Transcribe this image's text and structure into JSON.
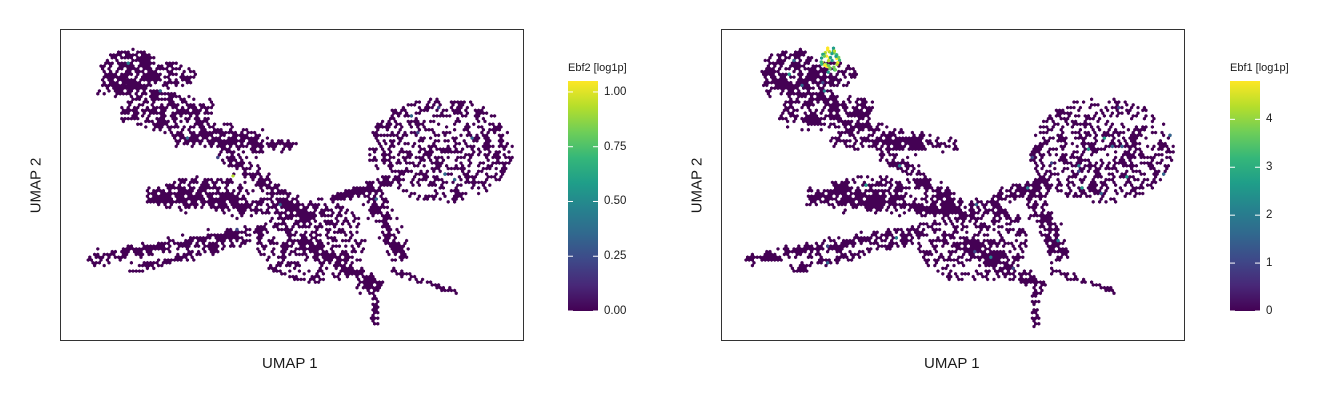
{
  "colors": {
    "viridis": [
      "#440154",
      "#482878",
      "#3e4989",
      "#31688e",
      "#26828e",
      "#1f9e89",
      "#35b779",
      "#6ece58",
      "#b5de2b",
      "#fde725"
    ],
    "frame": "#333333"
  },
  "panels": [
    {
      "x_label": "UMAP 1",
      "y_label": "UMAP 2",
      "legend_title": "Ebf2 [log1p]",
      "ticks": [
        "0.00",
        "0.25",
        "0.50",
        "0.75",
        "1.00"
      ],
      "tick_values": [
        0,
        0.25,
        0.5,
        0.75,
        1.0
      ],
      "scale_max": 1.05
    },
    {
      "x_label": "UMAP 1",
      "y_label": "UMAP 2",
      "legend_title": "Ebf1 [log1p]",
      "ticks": [
        "0",
        "1",
        "2",
        "3",
        "4"
      ],
      "tick_values": [
        0,
        1,
        2,
        3,
        4
      ],
      "scale_max": 4.8
    }
  ],
  "chart_data": [
    {
      "type": "scatter",
      "subtype": "hexbin embedding",
      "xlabel": "UMAP 1",
      "ylabel": "UMAP 2",
      "color_by": "Ebf2 [log1p]",
      "color_range": [
        0,
        1.05
      ],
      "colorbar_ticks": [
        0,
        0.25,
        0.5,
        0.75,
        1.0
      ],
      "axis_ticks": false,
      "grid": false,
      "legend_placement": "right"
    },
    {
      "type": "scatter",
      "subtype": "hexbin embedding",
      "xlabel": "UMAP 1",
      "ylabel": "UMAP 2",
      "color_by": "Ebf1 [log1p]",
      "color_range": [
        0,
        4.8
      ],
      "colorbar_ticks": [
        0,
        1,
        2,
        3,
        4
      ],
      "axis_ticks": false,
      "grid": false,
      "legend_placement": "right"
    }
  ]
}
